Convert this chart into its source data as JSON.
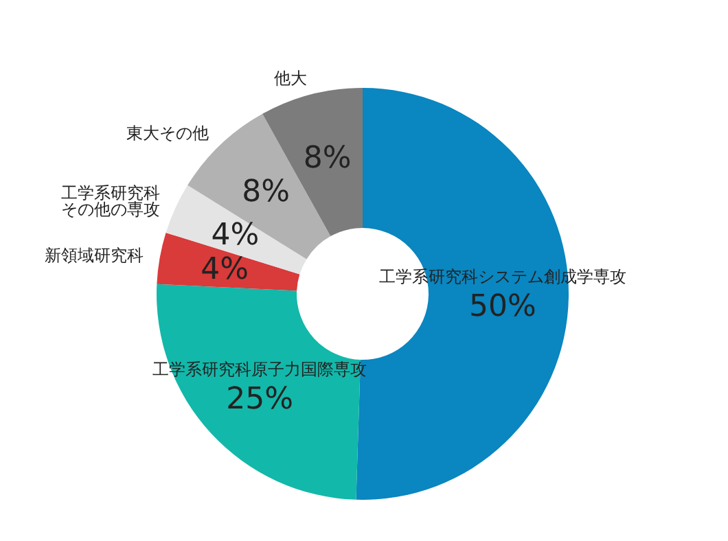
{
  "chart_data": {
    "type": "donut",
    "categories": [
      "工学系研究科システム創成学専攻",
      "工学系研究科原子力国際専攻",
      "新領域研究科",
      "工学系研究科その他の専攻",
      "東大その他",
      "他大"
    ],
    "values": [
      50,
      25,
      4,
      4,
      8,
      8
    ],
    "colors": [
      "#0a86c0",
      "#12b8aa",
      "#d93a3a",
      "#e4e4e4",
      "#b2b2b2",
      "#7c7c7c"
    ],
    "value_labels": [
      "50%",
      "25%",
      "4%",
      "4%",
      "8%",
      "8%"
    ]
  }
}
